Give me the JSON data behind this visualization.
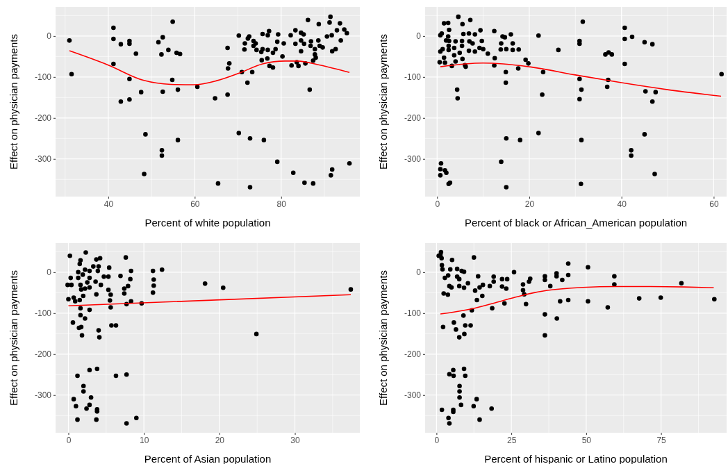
{
  "chart_data": [
    {
      "type": "scatter",
      "xlabel": "Percent of white population",
      "ylabel": "Effect on physician payments",
      "xlim": [
        27.8,
        98.2
      ],
      "ylim": [
        -392,
        71
      ],
      "xticks": [
        40,
        60,
        80
      ],
      "yticks": [
        -300,
        -200,
        -100,
        0
      ],
      "grid": true,
      "series": [
        {
          "marker": "circle",
          "color": "#000000",
          "x": [
            31.0,
            31.5,
            41.2,
            41.2,
            41.2,
            42.9,
            44.9,
            44.9,
            46.4,
            44.9,
            42.9,
            44.9,
            47.6,
            48.6,
            48.3,
            51.6,
            52.6,
            52.3,
            53.9,
            54.9,
            55.8,
            56.6,
            54.8,
            52.6,
            56.1,
            52.4,
            52.4,
            56.1,
            60.6,
            64.7,
            65.4,
            67.6,
            68.0,
            67.7,
            67.6,
            70.2,
            70.9,
            71.5,
            71.6,
            72.3,
            72.6,
            73.6,
            74.1,
            73.6,
            74.3,
            75.4,
            75.7,
            75.7,
            76.9,
            77.2,
            76.9,
            76.8,
            75.5,
            78.1,
            78.7,
            77.3,
            78.1,
            72.2,
            73.3,
            70.2,
            72.8,
            76.0,
            79.1,
            72.8,
            79.3,
            79.1,
            80.6,
            80.3,
            82.2,
            83.3,
            83.3,
            84.6,
            85.2,
            84.6,
            85.3,
            84.6,
            83.6,
            82.4,
            84.0,
            85.6,
            86.2,
            86.9,
            86.8,
            87.8,
            88.6,
            88.7,
            88.9,
            89.6,
            87.8,
            88.0,
            87.4,
            86.6,
            82.8,
            85.4,
            87.4,
            90.6,
            91.4,
            91.2,
            91.7,
            93.6,
            92.9,
            94.6,
            95.2,
            93.8,
            92.6,
            91.8,
            91.5,
            91.8,
            95.8
          ],
          "values": [
            -11,
            -93,
            20,
            -7,
            -68,
            -20,
            -12,
            -19,
            -43,
            -105,
            -160,
            -155,
            -137,
            -240,
            -337,
            -15,
            -3,
            -45,
            -34,
            35,
            -41,
            -44,
            -107,
            -136,
            -131,
            -279,
            -292,
            -254,
            -124,
            -152,
            -360,
            -29,
            -67,
            -79,
            -143,
            1,
            -88,
            -33,
            -18,
            -6,
            -1,
            -12,
            -18,
            -24,
            -34,
            -39,
            -32,
            5,
            -34,
            12,
            2,
            -55,
            -59,
            -41,
            -32,
            -73,
            -77,
            -114,
            -88,
            -237,
            -250,
            -254,
            -307,
            -369,
            4,
            -14,
            -18,
            -50,
            2,
            14,
            -19,
            8,
            4,
            -11,
            -19,
            -37,
            -64,
            -72,
            -73,
            -67,
            39,
            -13,
            -24,
            -32,
            -11,
            29,
            -24,
            -28,
            -45,
            -53,
            -60,
            -131,
            -334,
            -358,
            -360,
            -1,
            47,
            33,
            2,
            31,
            14,
            16,
            7,
            -11,
            -32,
            -37,
            -340,
            -326,
            -311
          ]
        },
        {
          "type": "line",
          "color": "#ff0000",
          "x": [
            31,
            40,
            48.1,
            54.5,
            59.8,
            65.1,
            70.4,
            75.7,
            80.9,
            83.7,
            89,
            95.8
          ],
          "values": [
            -36,
            -71,
            -108,
            -118,
            -119,
            -109,
            -90,
            -68,
            -61,
            -61,
            -71,
            -89
          ]
        }
      ]
    },
    {
      "type": "scatter",
      "xlabel": "Percent of black or African_American population",
      "ylabel": "Effect on physician payments",
      "xlim": [
        -2.6,
        62.8
      ],
      "ylim": [
        -392,
        71
      ],
      "xticks": [
        0,
        20,
        40,
        60
      ],
      "yticks": [
        -300,
        -200,
        -100,
        0
      ],
      "grid": true,
      "series": [
        {
          "marker": "circle",
          "color": "#000000",
          "x": [
            0.85,
            0.7,
            1.7,
            2.0,
            0.7,
            2.5,
            2.8,
            4.6,
            1.5,
            2.4,
            5.5,
            7.2,
            2.6,
            1.0,
            0.7,
            2.4,
            1.95,
            2.6,
            4.0,
            5.4,
            5.7,
            6.9,
            8.2,
            9.4,
            9.7,
            7.7,
            7.0,
            5.4,
            2.5,
            3.7,
            2.5,
            1.2,
            0.7,
            4.9,
            3.7,
            1.5,
            5.5,
            4.0,
            0.55,
            1.7,
            3.2,
            6.2,
            6.05,
            6.9,
            8.2,
            9.2,
            10.0,
            11.0,
            12.4,
            12.5,
            12.4,
            14.2,
            14.7,
            16.0,
            13.9,
            13.8,
            15.0,
            16.4,
            16.4,
            17.7,
            19.2,
            19.8,
            17.6,
            14.9,
            14.9,
            4.35,
            4.45,
            22.0,
            26.3,
            23.0,
            22.8,
            22.0,
            15.0,
            18.0,
            13.9,
            15.0,
            31.6,
            30.9,
            30.9,
            30.9,
            31.3,
            30.9,
            31.3,
            31.2,
            36.5,
            37.2,
            37.9,
            37.1,
            36.9,
            40.7,
            40.7,
            42.3,
            40.7,
            45.0,
            46.7,
            45.2,
            47.4,
            46.7,
            45.0,
            42.1,
            42.1,
            47.2,
            61.7
          ],
          "values": [
            -311,
            -325,
            -328,
            -334,
            -340,
            -361,
            -358,
            47,
            31,
            32,
            29,
            39,
            15,
            6,
            2,
            -1,
            -11,
            -12,
            -13,
            -12,
            5,
            6,
            4,
            14,
            -12,
            -18,
            -13,
            -24,
            -24,
            -29,
            -34,
            -32,
            -38,
            -41,
            -47,
            -53,
            -56,
            -62,
            -64,
            -65,
            -73,
            -75,
            -71,
            -36,
            -38,
            -29,
            -32,
            -43,
            12,
            -54,
            -72,
            -1,
            -3,
            4,
            -18,
            -33,
            -32,
            -18,
            -34,
            -33,
            -58,
            -67,
            -79,
            -88,
            -114,
            -131,
            -152,
            1,
            -34,
            -88,
            -143,
            -237,
            -250,
            -254,
            -307,
            -369,
            35,
            -12,
            -19,
            -105,
            -131,
            -154,
            -254,
            -361,
            -45,
            -40,
            -45,
            -107,
            -124,
            20,
            -7,
            -2,
            -68,
            -15,
            -20,
            -135,
            -137,
            -160,
            -240,
            -279,
            -292,
            -337,
            -93
          ]
        },
        {
          "type": "line",
          "color": "#ff0000",
          "x": [
            0.7,
            9.95,
            19.95,
            30,
            40,
            50,
            61.6
          ],
          "values": [
            -75,
            -66,
            -75,
            -95,
            -114,
            -131,
            -147
          ]
        }
      ]
    },
    {
      "type": "scatter",
      "xlabel": "Percent of Asian population",
      "ylabel": "Effect on physician payments",
      "xlim": [
        -1.7,
        38.6
      ],
      "ylim": [
        -392,
        71
      ],
      "xticks": [
        0,
        10,
        20,
        30
      ],
      "yticks": [
        -300,
        -200,
        -100,
        0
      ],
      "grid": true,
      "series": [
        {
          "marker": "circle",
          "color": "#000000",
          "x": [
            0.2,
            2.3,
            7.6,
            1.6,
            1.5,
            3.7,
            4.2,
            3.3,
            4.0,
            5.4,
            3.9,
            2.2,
            1.3,
            2.8,
            1.9,
            1.3,
            0.3,
            2.8,
            4.7,
            5.3,
            6.9,
            8.3,
            8.2,
            11.2,
            12.4,
            11.3,
            11.3,
            11.2,
            18.1,
            20.5,
            37.4,
            -0.1,
            0.4,
            1.6,
            2.5,
            3.6,
            4.3,
            1.7,
            2.2,
            2.8,
            5.3,
            5.6,
            5.5,
            7.4,
            7.4,
            7.9,
            3.7,
            1.96,
            0.7,
            0,
            0.9,
            1.5,
            1.6,
            2.8,
            5.6,
            7.7,
            8.3,
            9.7,
            1.6,
            2.2,
            0.6,
            1.4,
            1.7,
            1.8,
            4.0,
            4.1,
            5.7,
            6.3,
            24.9,
            2.8,
            3.8,
            1.2,
            6.3,
            7.7,
            2.0,
            2.0,
            3.0,
            0.7,
            1.0,
            2.8,
            2.4,
            3.8,
            3.8,
            1.2,
            3.7,
            9.0,
            7.7
          ],
          "values": [
            40,
            48,
            36,
            29,
            20,
            31,
            34,
            14,
            14,
            11,
            3,
            6,
            0,
            3,
            -6,
            -14,
            -14,
            -14,
            -11,
            -11,
            -9,
            3,
            -17,
            3,
            6,
            -18,
            -33,
            -50,
            -28,
            -38,
            -42,
            -31,
            -31,
            -31,
            -25,
            -23,
            -31,
            -42,
            -40,
            -37,
            -43,
            -55,
            -69,
            -40,
            -52,
            -34,
            -54,
            -58,
            -62,
            -66,
            -71,
            -68,
            -88,
            -92,
            -86,
            -78,
            -71,
            -76,
            -105,
            -113,
            -123,
            -136,
            -134,
            -154,
            -142,
            -159,
            -130,
            -130,
            -151,
            -239,
            -236,
            -253,
            -253,
            -250,
            -278,
            -291,
            -306,
            -310,
            -327,
            -324,
            -333,
            -335,
            -340,
            -360,
            -360,
            -356,
            -369
          ]
        },
        {
          "type": "line",
          "color": "#ff0000",
          "x": [
            0,
            37.4
          ],
          "values": [
            -82,
            -55
          ]
        }
      ]
    },
    {
      "type": "scatter",
      "xlabel": "Percent of hispanic or Latino population",
      "ylabel": "Effect on physician payments",
      "xlim": [
        -3.8,
        96.9
      ],
      "ylim": [
        -392,
        71
      ],
      "xticks": [
        0,
        25,
        50,
        75
      ],
      "yticks": [
        -300,
        -200,
        -100,
        0
      ],
      "grid": true,
      "series": [
        {
          "marker": "circle",
          "color": "#000000",
          "x": [
            1.5,
            1.3,
            0.75,
            1.7,
            5.2,
            12.5,
            1.8,
            2.0,
            4.6,
            6.9,
            8.4,
            9.2,
            3.9,
            2.8,
            6.9,
            7.6,
            4.3,
            5.0,
            7.6,
            9.2,
            10.5,
            2.4,
            3.8,
            12.9,
            14.4,
            15.5,
            13.9,
            15.3,
            13.5,
            11.8,
            9.0,
            5.8,
            2.2,
            6.5,
            7.6,
            9.3,
            9.6,
            11.4,
            17.8,
            19.1,
            19.1,
            21.9,
            23.6,
            21.9,
            23.3,
            18.6,
            22.7,
            25.9,
            28.9,
            28.9,
            29.3,
            29.9,
            30.9,
            31.3,
            36.2,
            36.2,
            38.0,
            36.2,
            36.2,
            40.1,
            40.1,
            42.0,
            44.0,
            44.0,
            41.3,
            44.0,
            40.2,
            50.6,
            50.6,
            57.2,
            59.4,
            59.4,
            67.7,
            74.9,
            81.8,
            92.8,
            4.3,
            5.6,
            5.7,
            9.2,
            9.6,
            7.7,
            7.7,
            7.7,
            1.8,
            5.6,
            5.6,
            8.2,
            13.4,
            12.4,
            18.4,
            4.0,
            4.3,
            14.4
          ],
          "values": [
            49,
            42,
            40,
            34,
            30,
            36,
            17,
            7,
            7,
            8,
            3,
            1,
            -8,
            -14,
            -11,
            -17,
            -34,
            -37,
            -34,
            -38,
            -27,
            -52,
            -55,
            -45,
            -37,
            -31,
            -10,
            -58,
            -68,
            -93,
            -106,
            -123,
            -134,
            -140,
            -159,
            -151,
            -130,
            -130,
            -34,
            -11,
            -23,
            -17,
            -17,
            -35,
            -40,
            -88,
            -76,
            0,
            -30,
            -44,
            -54,
            -78,
            -23,
            -16,
            -10,
            -19,
            -34,
            -103,
            -154,
            -3,
            -10,
            -19,
            21,
            -7,
            -71,
            -68,
            -113,
            12,
            -71,
            -86,
            -10,
            -30,
            -64,
            -62,
            -27,
            -66,
            -249,
            -239,
            -253,
            -236,
            -253,
            -278,
            -291,
            -306,
            -336,
            -336,
            -341,
            -324,
            -310,
            -327,
            -333,
            -356,
            -369,
            -360
          ]
        },
        {
          "type": "line",
          "color": "#ff0000",
          "x": [
            1.3,
            11.4,
            18.9,
            26.4,
            33.9,
            41.4,
            48.9,
            60.2,
            71.4,
            82.7,
            92.6
          ],
          "values": [
            -102,
            -90,
            -76,
            -61,
            -48,
            -41,
            -37,
            -35,
            -35,
            -36,
            -38
          ]
        }
      ]
    }
  ]
}
